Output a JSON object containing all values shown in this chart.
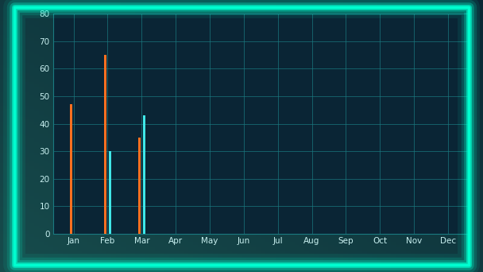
{
  "months": [
    "Jan",
    "Feb",
    "Mar",
    "Apr",
    "May",
    "Jun",
    "Jul",
    "Aug",
    "Sep",
    "Oct",
    "Nov",
    "Dec"
  ],
  "orange_values": [
    47,
    65,
    35,
    0,
    0,
    0,
    0,
    0,
    0,
    0,
    0,
    0
  ],
  "cyan_values": [
    0,
    30,
    43,
    0,
    0,
    0,
    0,
    0,
    0,
    0,
    0,
    0
  ],
  "orange_color": "#FF7020",
  "cyan_color": "#40E8E8",
  "background_color": "#0A1F2E",
  "plot_bg_color": "#0A2535",
  "grid_color": "#1A7A80",
  "text_color": "#C8F0F0",
  "border_color": "#00FFD0",
  "ylim": [
    0,
    80
  ],
  "yticks": [
    0,
    10,
    20,
    30,
    40,
    50,
    60,
    70,
    80
  ],
  "bar_width": 0.08,
  "figsize": [
    6.08,
    3.42
  ],
  "dpi": 100
}
